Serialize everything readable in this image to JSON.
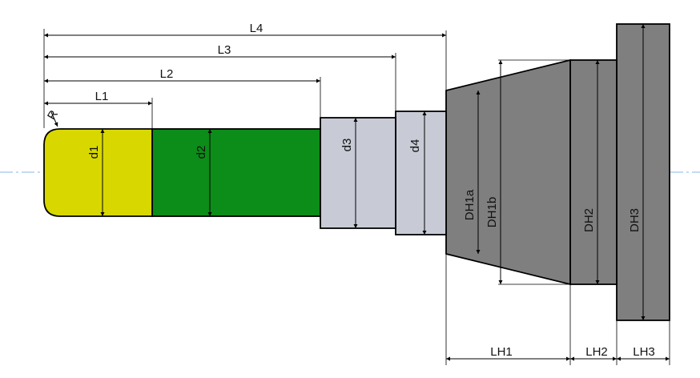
{
  "drawing": {
    "colors": {
      "tip": "#d8d800",
      "shank": "#0c8c18",
      "step_section": "#c8cbd6",
      "holder_body": "#7f7f7f",
      "centerline": "#8ab4e8",
      "outline": "#000000"
    },
    "dimensions": {
      "length": {
        "L1": "L1",
        "L2": "L2",
        "L3": "L3",
        "L4": "L4",
        "LH1": "LH1",
        "LH2": "LH2",
        "LH3": "LH3"
      },
      "diameter": {
        "d1": "d1",
        "d2": "d2",
        "d3": "d3",
        "d4": "d4",
        "DH1a": "DH1a",
        "DH1b": "DH1b",
        "DH2": "DH2",
        "DH3": "DH3"
      },
      "radius": {
        "R": "R"
      }
    }
  }
}
